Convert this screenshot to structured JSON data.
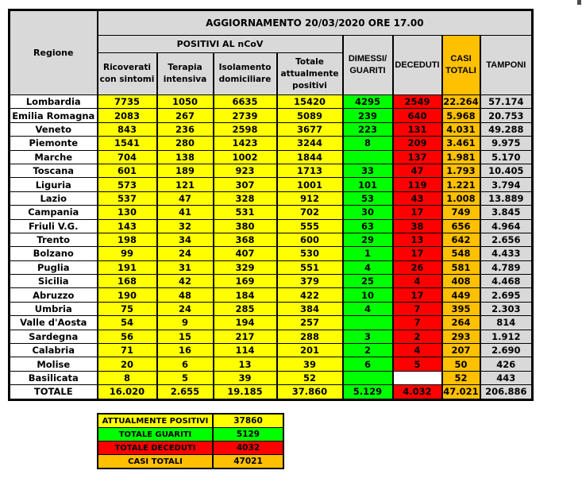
{
  "colors": {
    "gray": "#d9d9d9",
    "yellow": "#ffff00",
    "green": "#00ff00",
    "red": "#ff0000",
    "orange": "#ffc000"
  },
  "chart_data": {
    "type": "table",
    "title": "AGGIORNAMENTO 20/03/2020 ORE 17.00",
    "region_header": "Regione",
    "group_header": "POSITIVI AL nCoV",
    "column_ids": [
      "ricoverati-con-sintomi",
      "terapia-intensiva",
      "isolamento-domiciliare",
      "totale-attualmente-positivi",
      "dimessi-guariti",
      "deceduti",
      "casi-totali",
      "tamponi"
    ],
    "columns": [
      "Ricoverati con sintomi",
      "Terapia intensiva",
      "Isolamento domiciliare",
      "Totale attualmente positivi",
      "DIMESSI/ GUARITI",
      "DECEDUTI",
      "CASI TOTALI",
      "TAMPONI"
    ],
    "rows": [
      {
        "region": "Lombardia",
        "values": [
          "7735",
          "1050",
          "6635",
          "15420",
          "4295",
          "2549",
          "22.264",
          "57.174"
        ]
      },
      {
        "region": "Emilia Romagna",
        "values": [
          "2083",
          "267",
          "2739",
          "5089",
          "239",
          "640",
          "5.968",
          "20.753"
        ]
      },
      {
        "region": "Veneto",
        "values": [
          "843",
          "236",
          "2598",
          "3677",
          "223",
          "131",
          "4.031",
          "49.288"
        ]
      },
      {
        "region": "Piemonte",
        "values": [
          "1541",
          "280",
          "1423",
          "3244",
          "8",
          "209",
          "3.461",
          "9.975"
        ]
      },
      {
        "region": "Marche",
        "values": [
          "704",
          "138",
          "1002",
          "1844",
          "",
          "137",
          "1.981",
          "5.170"
        ]
      },
      {
        "region": "Toscana",
        "values": [
          "601",
          "189",
          "923",
          "1713",
          "33",
          "47",
          "1.793",
          "10.405"
        ]
      },
      {
        "region": "Liguria",
        "values": [
          "573",
          "121",
          "307",
          "1001",
          "101",
          "119",
          "1.221",
          "3.794"
        ]
      },
      {
        "region": "Lazio",
        "values": [
          "537",
          "47",
          "328",
          "912",
          "53",
          "43",
          "1.008",
          "13.889"
        ]
      },
      {
        "region": "Campania",
        "values": [
          "130",
          "41",
          "531",
          "702",
          "30",
          "17",
          "749",
          "3.845"
        ]
      },
      {
        "region": "Friuli V.G.",
        "values": [
          "143",
          "32",
          "380",
          "555",
          "63",
          "38",
          "656",
          "4.964"
        ]
      },
      {
        "region": "Trento",
        "values": [
          "198",
          "34",
          "368",
          "600",
          "29",
          "13",
          "642",
          "2.656"
        ]
      },
      {
        "region": "Bolzano",
        "values": [
          "99",
          "24",
          "407",
          "530",
          "1",
          "17",
          "548",
          "4.433"
        ]
      },
      {
        "region": "Puglia",
        "values": [
          "191",
          "31",
          "329",
          "551",
          "4",
          "26",
          "581",
          "4.789"
        ]
      },
      {
        "region": "Sicilia",
        "values": [
          "168",
          "42",
          "169",
          "379",
          "25",
          "4",
          "408",
          "4.468"
        ]
      },
      {
        "region": "Abruzzo",
        "values": [
          "190",
          "48",
          "184",
          "422",
          "10",
          "17",
          "449",
          "2.695"
        ]
      },
      {
        "region": "Umbria",
        "values": [
          "75",
          "24",
          "285",
          "384",
          "4",
          "7",
          "395",
          "2.303"
        ]
      },
      {
        "region": "Valle d'Aosta",
        "values": [
          "54",
          "9",
          "194",
          "257",
          "",
          "7",
          "264",
          "814"
        ]
      },
      {
        "region": "Sardegna",
        "values": [
          "56",
          "15",
          "217",
          "288",
          "3",
          "2",
          "293",
          "1.912"
        ]
      },
      {
        "region": "Calabria",
        "values": [
          "71",
          "16",
          "114",
          "201",
          "2",
          "4",
          "207",
          "2.690"
        ]
      },
      {
        "region": "Molise",
        "values": [
          "20",
          "6",
          "13",
          "39",
          "6",
          "5",
          "50",
          "426"
        ]
      },
      {
        "region": "Basilicata",
        "values": [
          "8",
          "5",
          "39",
          "52",
          "",
          "",
          "52",
          "443"
        ]
      }
    ],
    "white_cells": [
      {
        "row": 20,
        "col": 5
      }
    ],
    "total_row": {
      "region": "TOTALE",
      "values": [
        "16.020",
        "2.655",
        "19.185",
        "37.860",
        "5.129",
        "4.032",
        "47.021",
        "206.886"
      ]
    },
    "summary": [
      {
        "label": "ATTUALMENTE POSITIVI",
        "value": "37860",
        "color_key": "yellow"
      },
      {
        "label": "TOTALE GUARITI",
        "value": "5129",
        "color_key": "green"
      },
      {
        "label": "TOTALE DECEDUTI",
        "value": "4032",
        "color_key": "red"
      },
      {
        "label": "CASI TOTALI",
        "value": "47021",
        "color_key": "orange"
      }
    ]
  }
}
